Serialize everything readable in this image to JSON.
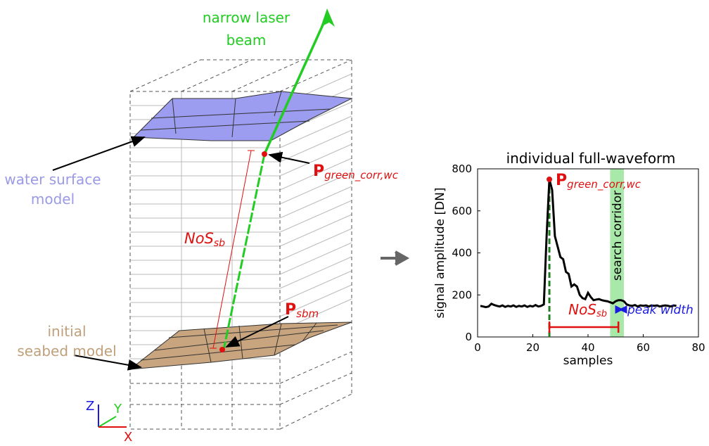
{
  "diagram": {
    "beam_label": [
      "narrow laser",
      "beam"
    ],
    "water_label": [
      "water surface",
      "model"
    ],
    "seabed_label": [
      "initial",
      "seabed model"
    ],
    "nos_main": "NoS",
    "nos_sub": "sb",
    "p_corr_main": "P",
    "p_corr_sub": "green_corr,wc",
    "p_sbm_main": "P",
    "p_sbm_sub": "sbm",
    "axis_z": "Z",
    "axis_y": "Y",
    "axis_x": "X"
  },
  "chart_data": {
    "type": "line",
    "title": "individual full-waveform",
    "x_label": "samples",
    "y_label": "signal amplitude [DN]",
    "color": "#000000",
    "x": [
      1,
      2,
      3,
      4,
      5,
      6,
      7,
      8,
      9,
      10,
      11,
      12,
      13,
      14,
      15,
      16,
      17,
      18,
      19,
      20,
      21,
      22,
      23,
      24,
      25,
      26,
      27,
      28,
      29,
      30,
      31,
      32,
      33,
      34,
      35,
      36,
      37,
      38,
      39,
      40,
      41,
      42,
      43,
      44,
      45,
      46,
      47,
      48,
      49,
      50,
      51,
      52,
      53,
      54,
      55,
      56,
      57,
      58,
      59,
      60,
      61,
      62,
      63,
      64,
      65,
      66,
      67,
      68,
      69,
      70,
      71,
      72
    ],
    "values": [
      148,
      145,
      142,
      145,
      158,
      152,
      148,
      145,
      150,
      143,
      148,
      145,
      150,
      143,
      148,
      145,
      150,
      143,
      148,
      145,
      152,
      145,
      148,
      155,
      480,
      750,
      700,
      480,
      430,
      380,
      370,
      310,
      300,
      240,
      250,
      240,
      200,
      185,
      180,
      210,
      190,
      175,
      178,
      180,
      175,
      172,
      170,
      165,
      160,
      170,
      175,
      175,
      170,
      155,
      150,
      148,
      152,
      145,
      150,
      148,
      150,
      145,
      150,
      148,
      150,
      145,
      148,
      150,
      148,
      145,
      150,
      148
    ],
    "xlim": [
      0,
      80
    ],
    "ylim": [
      0,
      800
    ],
    "xticks": [
      0,
      20,
      40,
      60,
      80
    ],
    "yticks": [
      0,
      200,
      400,
      600,
      800
    ],
    "search_corridor": {
      "label": "search corridor",
      "x": [
        48,
        53
      ],
      "color": "#a8e8a8"
    },
    "peak": {
      "x": 26,
      "y": 750,
      "label_main": "P",
      "label_sub": "green_corr,wc",
      "color": "#e01010",
      "line_color": "#208020"
    },
    "nos": {
      "x": [
        26,
        51
      ],
      "label_main": "NoS",
      "label_sub": "sb",
      "color": "#e01010"
    },
    "peak_width": {
      "x": [
        51,
        53
      ],
      "label": "peak width",
      "color": "#1a1ae0"
    }
  }
}
